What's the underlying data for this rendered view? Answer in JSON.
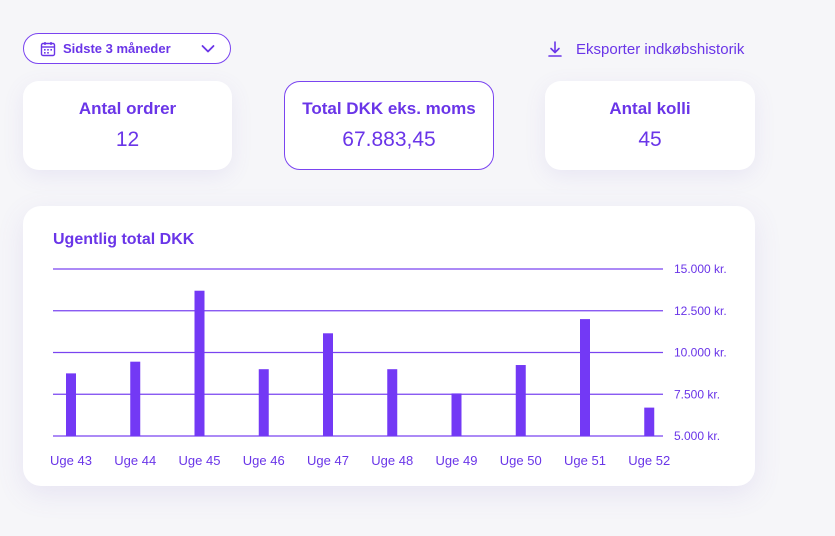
{
  "filter": {
    "label": "Sidste 3 måneder",
    "icon": "calendar-icon",
    "chevron": "chevron-down-icon"
  },
  "export": {
    "label": "Eksporter indkøbshistorik",
    "icon": "download-icon"
  },
  "cards": [
    {
      "title": "Antal ordrer",
      "value": "12"
    },
    {
      "title": "Total DKK eks. moms",
      "value": "67.883,45"
    },
    {
      "title": "Antal kolli",
      "value": "45"
    }
  ],
  "colors": {
    "accent": "#6a35e8",
    "bar": "#7339f5",
    "background": "#f6f6f9"
  },
  "chart_data": {
    "type": "bar",
    "title": "Ugentlig total DKK",
    "xlabel": "",
    "ylabel": "",
    "categories": [
      "Uge 43",
      "Uge 44",
      "Uge 45",
      "Uge 46",
      "Uge 47",
      "Uge 48",
      "Uge 49",
      "Uge 50",
      "Uge 51",
      "Uge 52"
    ],
    "values": [
      8750,
      9450,
      13700,
      9000,
      11150,
      9000,
      7550,
      9250,
      12000,
      6700
    ],
    "ylim": [
      5000,
      15000
    ],
    "yticks": [
      {
        "value": 15000,
        "label": "15.000 kr."
      },
      {
        "value": 12500,
        "label": "12.500 kr."
      },
      {
        "value": 10000,
        "label": "10.000 kr."
      },
      {
        "value": 7500,
        "label": "7.500 kr."
      },
      {
        "value": 5000,
        "label": "5.000 kr."
      }
    ],
    "grid": true,
    "y_axis_position": "right"
  }
}
